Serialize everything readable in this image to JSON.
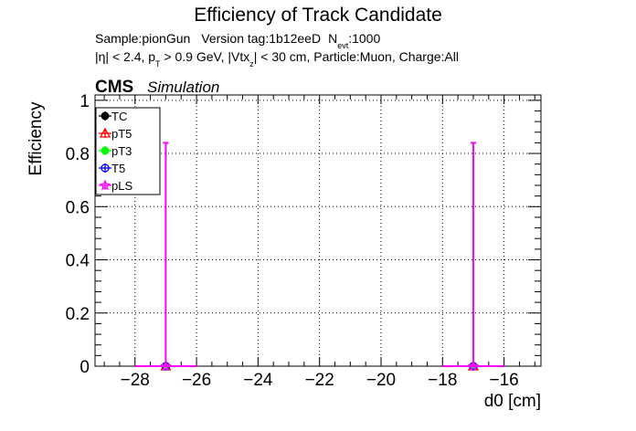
{
  "chart_data": {
    "type": "scatter",
    "title": "Efficiency of Track Candidate",
    "subtitle_line1": {
      "sample": "Sample:pionGun",
      "version": "Version tag:1b12eeD",
      "nevt_label": "N",
      "nevt_sub": "evt",
      "nevt_value": ":1000"
    },
    "subtitle_line2": {
      "eta": "|η| < 2.4, p",
      "pt_sub": "T",
      "pt_cut": " > 0.9 GeV, |Vtx",
      "vtx_sub": "z",
      "rest": "| < 30 cm, Particle:Muon, Charge:All"
    },
    "cms_label": "CMS",
    "cms_sublabel": "Simulation",
    "xlabel": "d0 [cm]",
    "ylabel": "Efficiency",
    "xlim": [
      -29.3,
      -14.8
    ],
    "ylim": [
      0,
      1.02
    ],
    "x_ticks": [
      -28,
      -26,
      -24,
      -22,
      -20,
      -18,
      -16
    ],
    "y_ticks": [
      0,
      0.2,
      0.4,
      0.6,
      0.8,
      1
    ],
    "grid": true,
    "legend_position": "top-left",
    "series": [
      {
        "name": "TC",
        "color": "#000000",
        "marker": "circle-filled",
        "x": [
          -27,
          -17
        ],
        "y": [
          0,
          0
        ]
      },
      {
        "name": "pT5",
        "color": "#ff0000",
        "marker": "triangle-open",
        "x": [
          -27,
          -17
        ],
        "y": [
          0,
          0
        ]
      },
      {
        "name": "pT3",
        "color": "#00ff00",
        "marker": "circle-filled",
        "x": [
          -27,
          -17
        ],
        "y": [
          0,
          0
        ]
      },
      {
        "name": "T5",
        "color": "#0000ff",
        "marker": "circle-open",
        "x": [
          -27,
          -17
        ],
        "y": [
          0,
          0
        ]
      },
      {
        "name": "pLS",
        "color": "#ff00ff",
        "marker": "star-open",
        "x": [
          -27,
          -17
        ],
        "y": [
          0,
          0
        ],
        "x_error": [
          1,
          1
        ],
        "y_error_up": [
          0.84,
          0.84
        ]
      }
    ]
  }
}
